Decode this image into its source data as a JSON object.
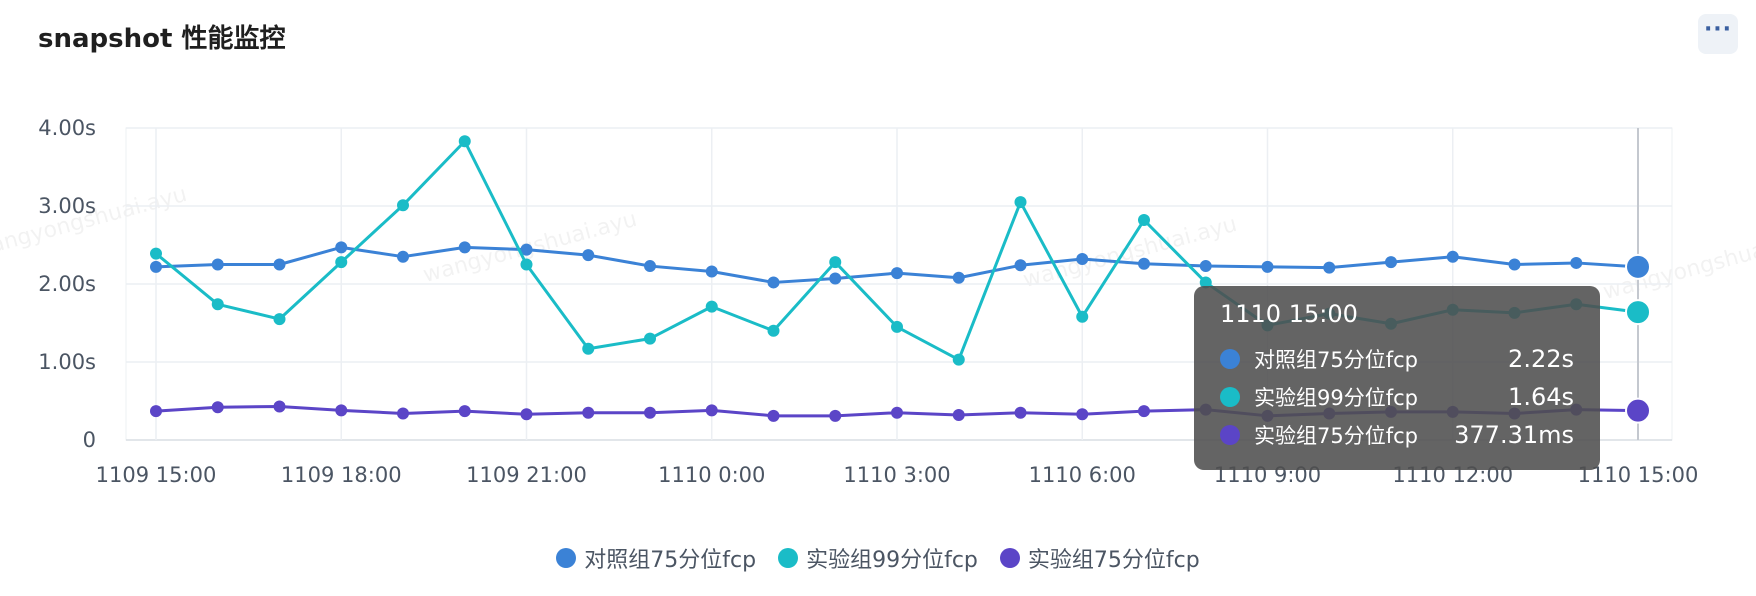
{
  "header": {
    "title": "snapshot 性能监控",
    "more_label": "···"
  },
  "watermarks": [
    "wangyongshuai.ayu",
    "wangyongshuai.ayu",
    "wangyongshuai.ayu",
    "wangyongshuai.ayu"
  ],
  "chart_data": {
    "type": "line",
    "title": "",
    "xlabel": "",
    "ylabel": "",
    "categories": [
      "1109 15:00",
      "1109 16:00",
      "1109 17:00",
      "1109 18:00",
      "1109 19:00",
      "1109 20:00",
      "1109 21:00",
      "1109 22:00",
      "1109 23:00",
      "1110 0:00",
      "1110 1:00",
      "1110 2:00",
      "1110 3:00",
      "1110 4:00",
      "1110 5:00",
      "1110 6:00",
      "1110 7:00",
      "1110 8:00",
      "1110 9:00",
      "1110 10:00",
      "1110 11:00",
      "1110 12:00",
      "1110 13:00",
      "1110 14:00",
      "1110 15:00"
    ],
    "x_tick_labels": [
      "1109 15:00",
      "1109 18:00",
      "1109 21:00",
      "1110 0:00",
      "1110 3:00",
      "1110 6:00",
      "1110 9:00",
      "1110 12:00",
      "1110 15:00"
    ],
    "y_tick_labels": [
      "0",
      "1.00s",
      "2.00s",
      "3.00s",
      "4.00s"
    ],
    "ylim": [
      0,
      4
    ],
    "y_unit": "s",
    "grid": true,
    "legend_position": "bottom-center",
    "series": [
      {
        "name": "对照组75分位fcp",
        "color": "#3b82d6",
        "values": [
          2.22,
          2.25,
          2.25,
          2.47,
          2.35,
          2.47,
          2.44,
          2.37,
          2.23,
          2.16,
          2.02,
          2.07,
          2.14,
          2.08,
          2.24,
          2.32,
          2.26,
          2.23,
          2.22,
          2.21,
          2.28,
          2.35,
          2.25,
          2.27,
          2.22
        ]
      },
      {
        "name": "实验组99分位fcp",
        "color": "#1abcc7",
        "values": [
          2.39,
          1.74,
          1.55,
          2.28,
          3.01,
          3.83,
          2.25,
          1.17,
          1.3,
          1.71,
          1.4,
          2.28,
          1.45,
          1.03,
          3.05,
          1.58,
          2.82,
          2.02,
          1.47,
          1.62,
          1.49,
          1.67,
          1.63,
          1.74,
          1.64
        ]
      },
      {
        "name": "实验组75分位fcp",
        "color": "#5b45c7",
        "values": [
          0.37,
          0.42,
          0.43,
          0.38,
          0.34,
          0.37,
          0.33,
          0.35,
          0.35,
          0.38,
          0.31,
          0.31,
          0.35,
          0.32,
          0.35,
          0.33,
          0.37,
          0.39,
          0.31,
          0.34,
          0.36,
          0.36,
          0.34,
          0.39,
          0.377
        ]
      }
    ]
  },
  "tooltip": {
    "title": "1110 15:00",
    "rows": [
      {
        "name": "对照组75分位fcp",
        "value": "2.22s",
        "color": "#3b82d6"
      },
      {
        "name": "实验组99分位fcp",
        "value": "1.64s",
        "color": "#1abcc7"
      },
      {
        "name": "实验组75分位fcp",
        "value": "377.31ms",
        "color": "#5b45c7"
      }
    ]
  }
}
